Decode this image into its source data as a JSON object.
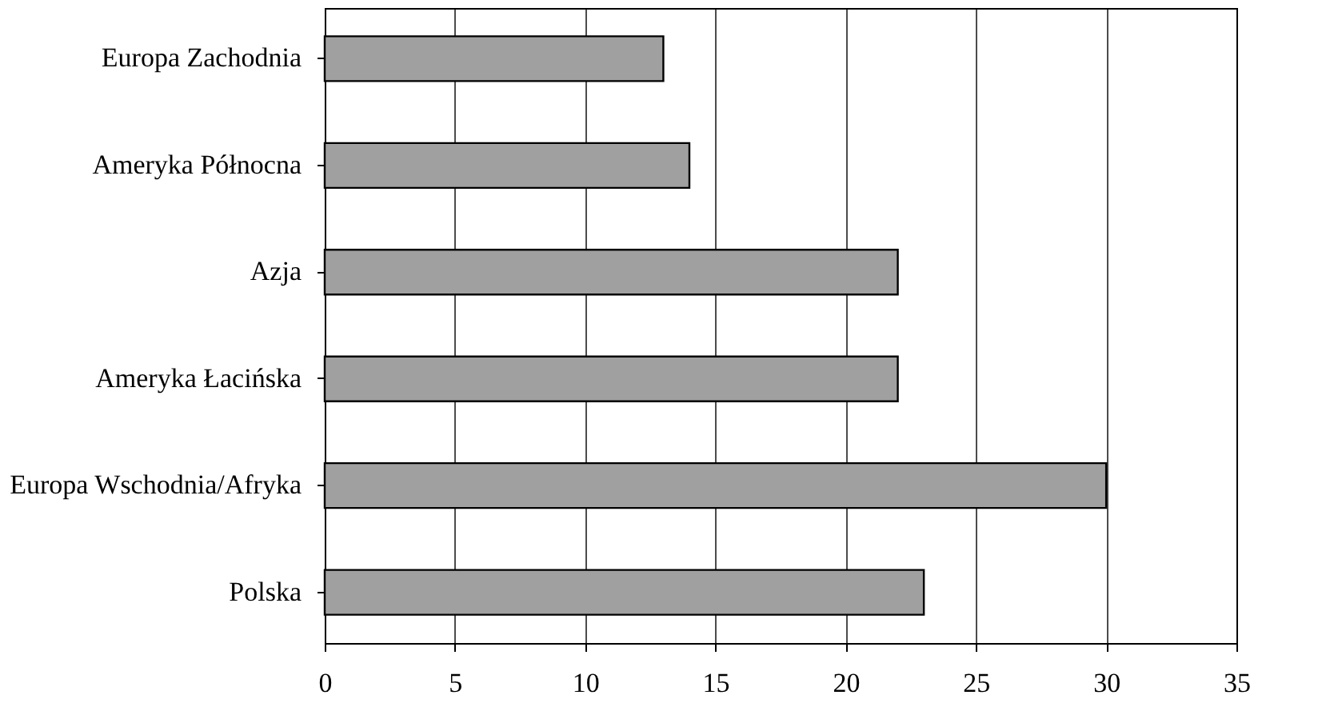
{
  "chart_data": {
    "type": "bar",
    "orientation": "horizontal",
    "categories": [
      "Europa Zachodnia",
      "Ameryka Północna",
      "Azja",
      "Ameryka Łacińska",
      "Europa Wschodnia/Afryka",
      "Polska"
    ],
    "values": [
      13,
      14,
      22,
      22,
      30,
      23
    ],
    "color": "#a0a0a0",
    "xlim": [
      0,
      35
    ],
    "xticks": [
      0,
      5,
      10,
      15,
      20,
      25,
      30,
      35
    ],
    "grid": "x"
  }
}
